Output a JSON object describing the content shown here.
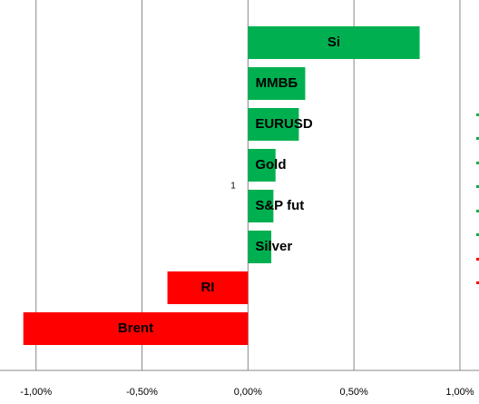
{
  "chart_data": {
    "type": "hbar",
    "categories": [
      "Si",
      "ММВБ",
      "EURUSD",
      "Gold",
      "S&P fut",
      "Silver",
      "RI",
      "Brent"
    ],
    "values": [
      0.81,
      0.27,
      0.24,
      0.13,
      0.12,
      0.11,
      -0.38,
      -1.06
    ],
    "colors": [
      "#00b050",
      "#00b050",
      "#00b050",
      "#00b050",
      "#00b050",
      "#00b050",
      "#ff0000",
      "#ff0000"
    ],
    "xlim": [
      -1.17,
      1.09
    ],
    "xticks": [
      {
        "value": -1,
        "label": "-1,00%"
      },
      {
        "value": -0.5,
        "label": "-0,50%"
      },
      {
        "value": 0,
        "label": "0,00%"
      },
      {
        "value": 0.5,
        "label": "0,50%"
      },
      {
        "value": 1,
        "label": "1,00%"
      }
    ],
    "grid": true,
    "y_label": "1"
  }
}
